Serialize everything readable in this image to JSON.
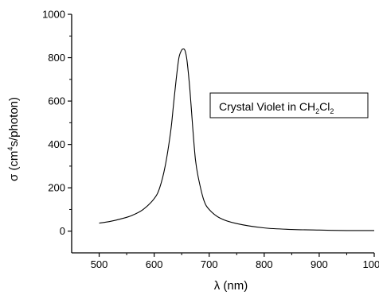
{
  "chart_data": {
    "type": "line",
    "xlabel": "λ (nm)",
    "ylabel": {
      "prefix": "σ (cm",
      "sup1": "4",
      "middle": "s/photon)"
    },
    "xlim": [
      450,
      1000
    ],
    "ylim": [
      -100,
      1000
    ],
    "x_ticks": [
      500,
      600,
      700,
      800,
      900,
      1000
    ],
    "y_ticks": [
      0,
      200,
      400,
      600,
      800,
      1000
    ],
    "annotation": {
      "text": "Crystal Violet in CH",
      "sub1": "2",
      "mid": "Cl",
      "sub2": "2"
    },
    "series": [
      {
        "x": [
          500,
          520,
          540,
          560,
          580,
          600,
          610,
          620,
          630,
          635,
          640,
          645,
          650,
          653,
          655,
          657,
          660,
          665,
          670,
          675,
          680,
          690,
          700,
          720,
          750,
          800,
          850,
          900,
          950,
          1000
        ],
        "y": [
          37,
          45,
          57,
          73,
          100,
          150,
          200,
          300,
          460,
          580,
          700,
          800,
          835,
          840,
          838,
          825,
          780,
          650,
          480,
          330,
          250,
          145,
          100,
          60,
          35,
          15,
          8,
          5,
          3,
          3
        ]
      }
    ]
  }
}
